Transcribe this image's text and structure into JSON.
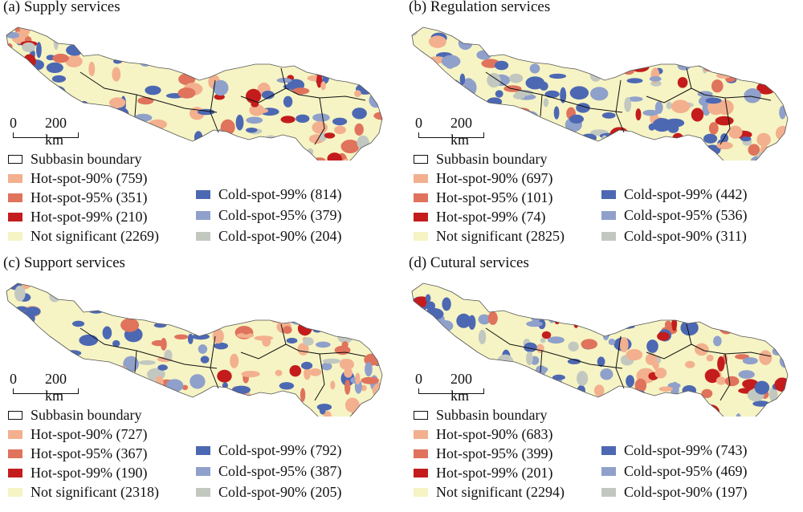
{
  "colors": {
    "hot90": "#f3b08e",
    "hot95": "#e0735c",
    "hot99": "#c41c1c",
    "notsig": "#f6f4c4",
    "cold99": "#4d68b3",
    "cold95": "#8fa0cb",
    "cold90": "#c2c8c0",
    "boundary": "#111111"
  },
  "scale_bar": {
    "zero": "0",
    "distance": "200 km"
  },
  "panels": [
    {
      "title": "(a) Supply services",
      "boundary": "Subbasin boundary",
      "hot90": "Hot-spot-90% (759)",
      "hot95": "Hot-spot-95% (351)",
      "hot99": "Hot-spot-99% (210)",
      "notsig": "Not significant (2269)",
      "cold99": "Cold-spot-99% (814)",
      "cold95": "Cold-spot-95% (379)",
      "cold90": "Cold-spot-90% (204)"
    },
    {
      "title": "(b) Regulation services",
      "boundary": "Subbasin boundary",
      "hot90": "Hot-spot-90% (697)",
      "hot95": "Hot-spot-95% (101)",
      "hot99": "Hot-spot-99% (74)",
      "notsig": "Not significant (2825)",
      "cold99": "Cold-spot-99% (442)",
      "cold95": "Cold-spot-95% (536)",
      "cold90": "Cold-spot-90% (311)"
    },
    {
      "title": "(c) Support services",
      "boundary": "Subbasin boundary",
      "hot90": "Hot-spot-90% (727)",
      "hot95": "Hot-spot-95% (367)",
      "hot99": "Hot-spot-99% (190)",
      "notsig": "Not significant (2318)",
      "cold99": "Cold-spot-99% (792)",
      "cold95": "Cold-spot-95% (387)",
      "cold90": "Cold-spot-90% (205)"
    },
    {
      "title": "(d) Cutural services",
      "boundary": "Subbasin boundary",
      "hot90": "Hot-spot-90% (683)",
      "hot95": "Hot-spot-95% (399)",
      "hot99": "Hot-spot-99% (201)",
      "notsig": "Not significant (2294)",
      "cold99": "Cold-spot-99% (743)",
      "cold95": "Cold-spot-95% (469)",
      "cold90": "Cold-spot-90% (197)"
    }
  ]
}
